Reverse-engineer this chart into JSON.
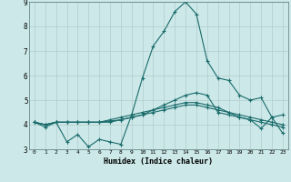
{
  "xlabel": "Humidex (Indice chaleur)",
  "xlim": [
    -0.5,
    23.5
  ],
  "ylim": [
    3,
    9
  ],
  "yticks": [
    3,
    4,
    5,
    6,
    7,
    8,
    9
  ],
  "xticks": [
    0,
    1,
    2,
    3,
    4,
    5,
    6,
    7,
    8,
    9,
    10,
    11,
    12,
    13,
    14,
    15,
    16,
    17,
    18,
    19,
    20,
    21,
    22,
    23
  ],
  "background_color": "#cce8e8",
  "grid_color": "#b0cccc",
  "line_color": "#1a6b6b",
  "series": [
    [
      4.1,
      3.9,
      4.1,
      3.3,
      3.6,
      3.1,
      3.4,
      3.3,
      3.2,
      4.4,
      5.9,
      7.2,
      7.8,
      8.6,
      9.0,
      8.5,
      6.6,
      5.9,
      5.8,
      5.2,
      5.0,
      5.1,
      4.3,
      4.4
    ],
    [
      4.1,
      4.0,
      4.1,
      4.1,
      4.1,
      4.1,
      4.1,
      4.1,
      4.2,
      4.3,
      4.4,
      4.5,
      4.6,
      4.7,
      4.8,
      4.8,
      4.7,
      4.6,
      4.5,
      4.4,
      4.3,
      4.2,
      4.1,
      4.0
    ],
    [
      4.1,
      4.0,
      4.1,
      4.1,
      4.1,
      4.1,
      4.1,
      4.2,
      4.3,
      4.4,
      4.5,
      4.6,
      4.7,
      4.8,
      4.9,
      4.9,
      4.8,
      4.7,
      4.5,
      4.3,
      4.2,
      4.1,
      4.0,
      3.9
    ],
    [
      4.1,
      4.0,
      4.1,
      4.1,
      4.1,
      4.1,
      4.1,
      4.15,
      4.2,
      4.3,
      4.4,
      4.6,
      4.8,
      5.0,
      5.2,
      5.3,
      5.2,
      4.5,
      4.4,
      4.3,
      4.2,
      3.85,
      4.3,
      3.65
    ]
  ]
}
